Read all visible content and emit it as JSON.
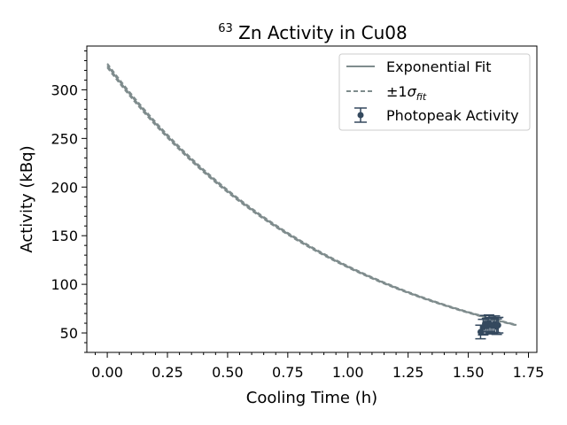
{
  "chart_data": {
    "type": "line",
    "title": {
      "sup": "63",
      "main": "Zn Activity in Cu08"
    },
    "xlabel": "Cooling Time (h)",
    "ylabel": "Activity (kBq)",
    "xlim": [
      -0.085,
      1.785
    ],
    "ylim": [
      30,
      345
    ],
    "xticks": [
      0.0,
      0.25,
      0.5,
      0.75,
      1.0,
      1.25,
      1.5,
      1.75
    ],
    "xtick_labels": [
      "0.00",
      "0.25",
      "0.50",
      "0.75",
      "1.00",
      "1.25",
      "1.50",
      "1.75"
    ],
    "yticks": [
      50,
      100,
      150,
      200,
      250,
      300
    ],
    "ytick_labels": [
      "50",
      "100",
      "150",
      "200",
      "250",
      "300"
    ],
    "x_minor_step": 0.05,
    "y_minor_step": 10,
    "grid": false,
    "legend_position": "top-right",
    "fit": {
      "label": "Exponential Fit",
      "model": "A0 * exp(-k * t)",
      "A0": 325,
      "k": 1.0128,
      "t_start": 0.0,
      "t_end": 1.7,
      "color": "#7f8c8d"
    },
    "sigma_band": {
      "label_prefix": "±1",
      "label_symbol": "σ",
      "label_sub": "fit",
      "upper_scale": 1.006,
      "lower_scale": 0.994,
      "color": "#7f8c8d"
    },
    "photopeak": {
      "label": "Photopeak Activity",
      "color": "#34495e",
      "points": [
        {
          "x": 1.551,
          "y": 51.0,
          "err": 7.0
        },
        {
          "x": 1.562,
          "y": 56.0,
          "err": 8.0
        },
        {
          "x": 1.57,
          "y": 59.5,
          "err": 8.5
        },
        {
          "x": 1.578,
          "y": 57.0,
          "err": 8.0
        },
        {
          "x": 1.586,
          "y": 60.0,
          "err": 8.5
        },
        {
          "x": 1.594,
          "y": 58.0,
          "err": 8.0
        },
        {
          "x": 1.602,
          "y": 57.5,
          "err": 8.0
        },
        {
          "x": 1.61,
          "y": 59.0,
          "err": 8.5
        },
        {
          "x": 1.618,
          "y": 56.5,
          "err": 8.0
        },
        {
          "x": 1.624,
          "y": 58.0,
          "err": 8.0
        }
      ]
    }
  }
}
